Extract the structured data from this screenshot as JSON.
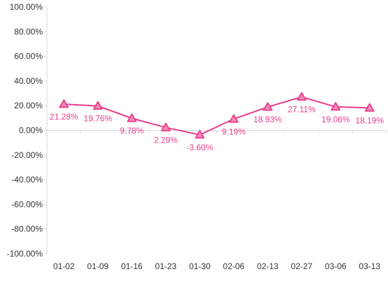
{
  "chart_data": {
    "type": "line",
    "categories": [
      "01-02",
      "01-09",
      "01-16",
      "01-23",
      "01-30",
      "02-06",
      "02-13",
      "02-27",
      "03-06",
      "03-13"
    ],
    "series": [
      {
        "values": [
          21.28,
          19.76,
          9.78,
          2.29,
          -3.6,
          9.19,
          18.93,
          27.11,
          19.06,
          18.19
        ],
        "labels": [
          "21.28%",
          "19.76%",
          "9.78%",
          "2.29%",
          "-3.60%",
          "9.19%",
          "18.93%",
          "27.11%",
          "19.06%",
          "18.19%"
        ],
        "color": "#e83e8c",
        "marker": "triangle"
      }
    ],
    "y_ticks": [
      "100.00%",
      "80.00%",
      "60.00%",
      "40.00%",
      "20.00%",
      "0.00%",
      "-20.00%",
      "-40.00%",
      "-60.00%",
      "-80.00%",
      "-100.00%"
    ],
    "ylim": [
      -100,
      100
    ],
    "grid": false,
    "legend": "none"
  }
}
